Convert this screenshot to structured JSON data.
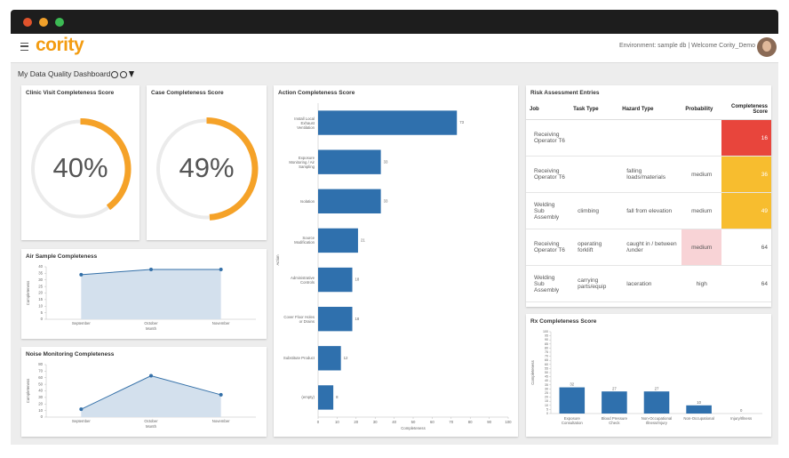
{
  "header": {
    "logo": "cority",
    "user_info": "Environment: sample db | Welcome Cority_Demo"
  },
  "dashboard_title": "My Data Quality Dashboard",
  "chart_data": [
    {
      "type": "gauge",
      "title": "Clinic Visit Completeness Score",
      "values": [
        40
      ],
      "value_labels": [
        "40%"
      ],
      "color": "#f5a228"
    },
    {
      "type": "gauge",
      "title": "Case Completeness Score",
      "values": [
        49
      ],
      "value_labels": [
        "49%"
      ],
      "color": "#f5a228"
    },
    {
      "type": "line",
      "title": "Air Sample Completeness",
      "categories": [
        "September",
        "October",
        "November"
      ],
      "values": [
        34,
        38,
        38
      ],
      "color": "#3470a8",
      "ylim": [
        0,
        40
      ],
      "yticks": [
        0,
        5,
        10,
        15,
        20,
        25,
        30,
        35,
        40
      ],
      "xlabel": "Month",
      "ylabel": "Completeness"
    },
    {
      "type": "line",
      "title": "Noise Monitoring Completeness",
      "categories": [
        "September",
        "October",
        "November"
      ],
      "values": [
        12,
        63,
        34
      ],
      "color": "#3470a8",
      "ylim": [
        0,
        80
      ],
      "yticks": [
        0,
        10,
        20,
        30,
        40,
        50,
        60,
        70,
        80
      ],
      "xlabel": "Month",
      "ylabel": "Completeness"
    },
    {
      "type": "hbar",
      "title": "Action Completeness Score",
      "categories": [
        "Install Local Exhaust Ventilation",
        "Exposure Monitoring / Air Sampling",
        "Isolation",
        "Source Modification",
        "Administrative Controls",
        "Cover Floor Holes or Drains",
        "Substitute Product",
        "(empty)"
      ],
      "values": [
        73,
        33,
        33,
        21,
        18,
        18,
        12,
        8
      ],
      "color": "#2f70ad",
      "xlim": [
        0,
        100
      ],
      "xticks": [
        0,
        10,
        20,
        30,
        40,
        50,
        60,
        70,
        80,
        90,
        100
      ],
      "xlabel": "Completeness",
      "ylabel": "Action"
    },
    {
      "type": "bar",
      "title": "Rx Completeness Score",
      "categories": [
        "Exposure Consultation",
        "Blood Pressure Check",
        "Non-Occupational Illness/Injury",
        "Non-Occupational",
        "Injury/Illness"
      ],
      "values": [
        32,
        27,
        27,
        10,
        0
      ],
      "color": "#2f70ad",
      "ylim": [
        0,
        100
      ],
      "yticks": [
        0,
        5,
        10,
        15,
        20,
        25,
        30,
        35,
        40,
        45,
        50,
        55,
        60,
        65,
        70,
        75,
        80,
        85,
        90,
        95,
        100
      ],
      "ylabel": "Completeness"
    }
  ],
  "risk_table": {
    "title": "Risk Assessment Entries",
    "columns": [
      "Job",
      "Task Type",
      "Hazard Type",
      "Probability",
      "Completeness Score"
    ],
    "rows": [
      [
        "Receiving Operator T6",
        null,
        null,
        null,
        16
      ],
      [
        "Receiving Operator T6",
        null,
        "falling loads/materials",
        "medium",
        36
      ],
      [
        "Welding Sub Assembly",
        "climbing",
        "fall from elevation",
        "medium",
        49
      ],
      [
        "Receiving Operator T6",
        "operating forklift",
        "caught in / between /under",
        "medium",
        64
      ],
      [
        "Welding Sub Assembly",
        "carrying parts/equip",
        "laceration",
        "high",
        64
      ]
    ],
    "score_colors": [
      "#e8453c",
      "#f7bd2f",
      "#f7bd2f",
      null,
      null
    ],
    "probability_colors": [
      null,
      null,
      null,
      "#f8d3d6",
      null
    ]
  }
}
